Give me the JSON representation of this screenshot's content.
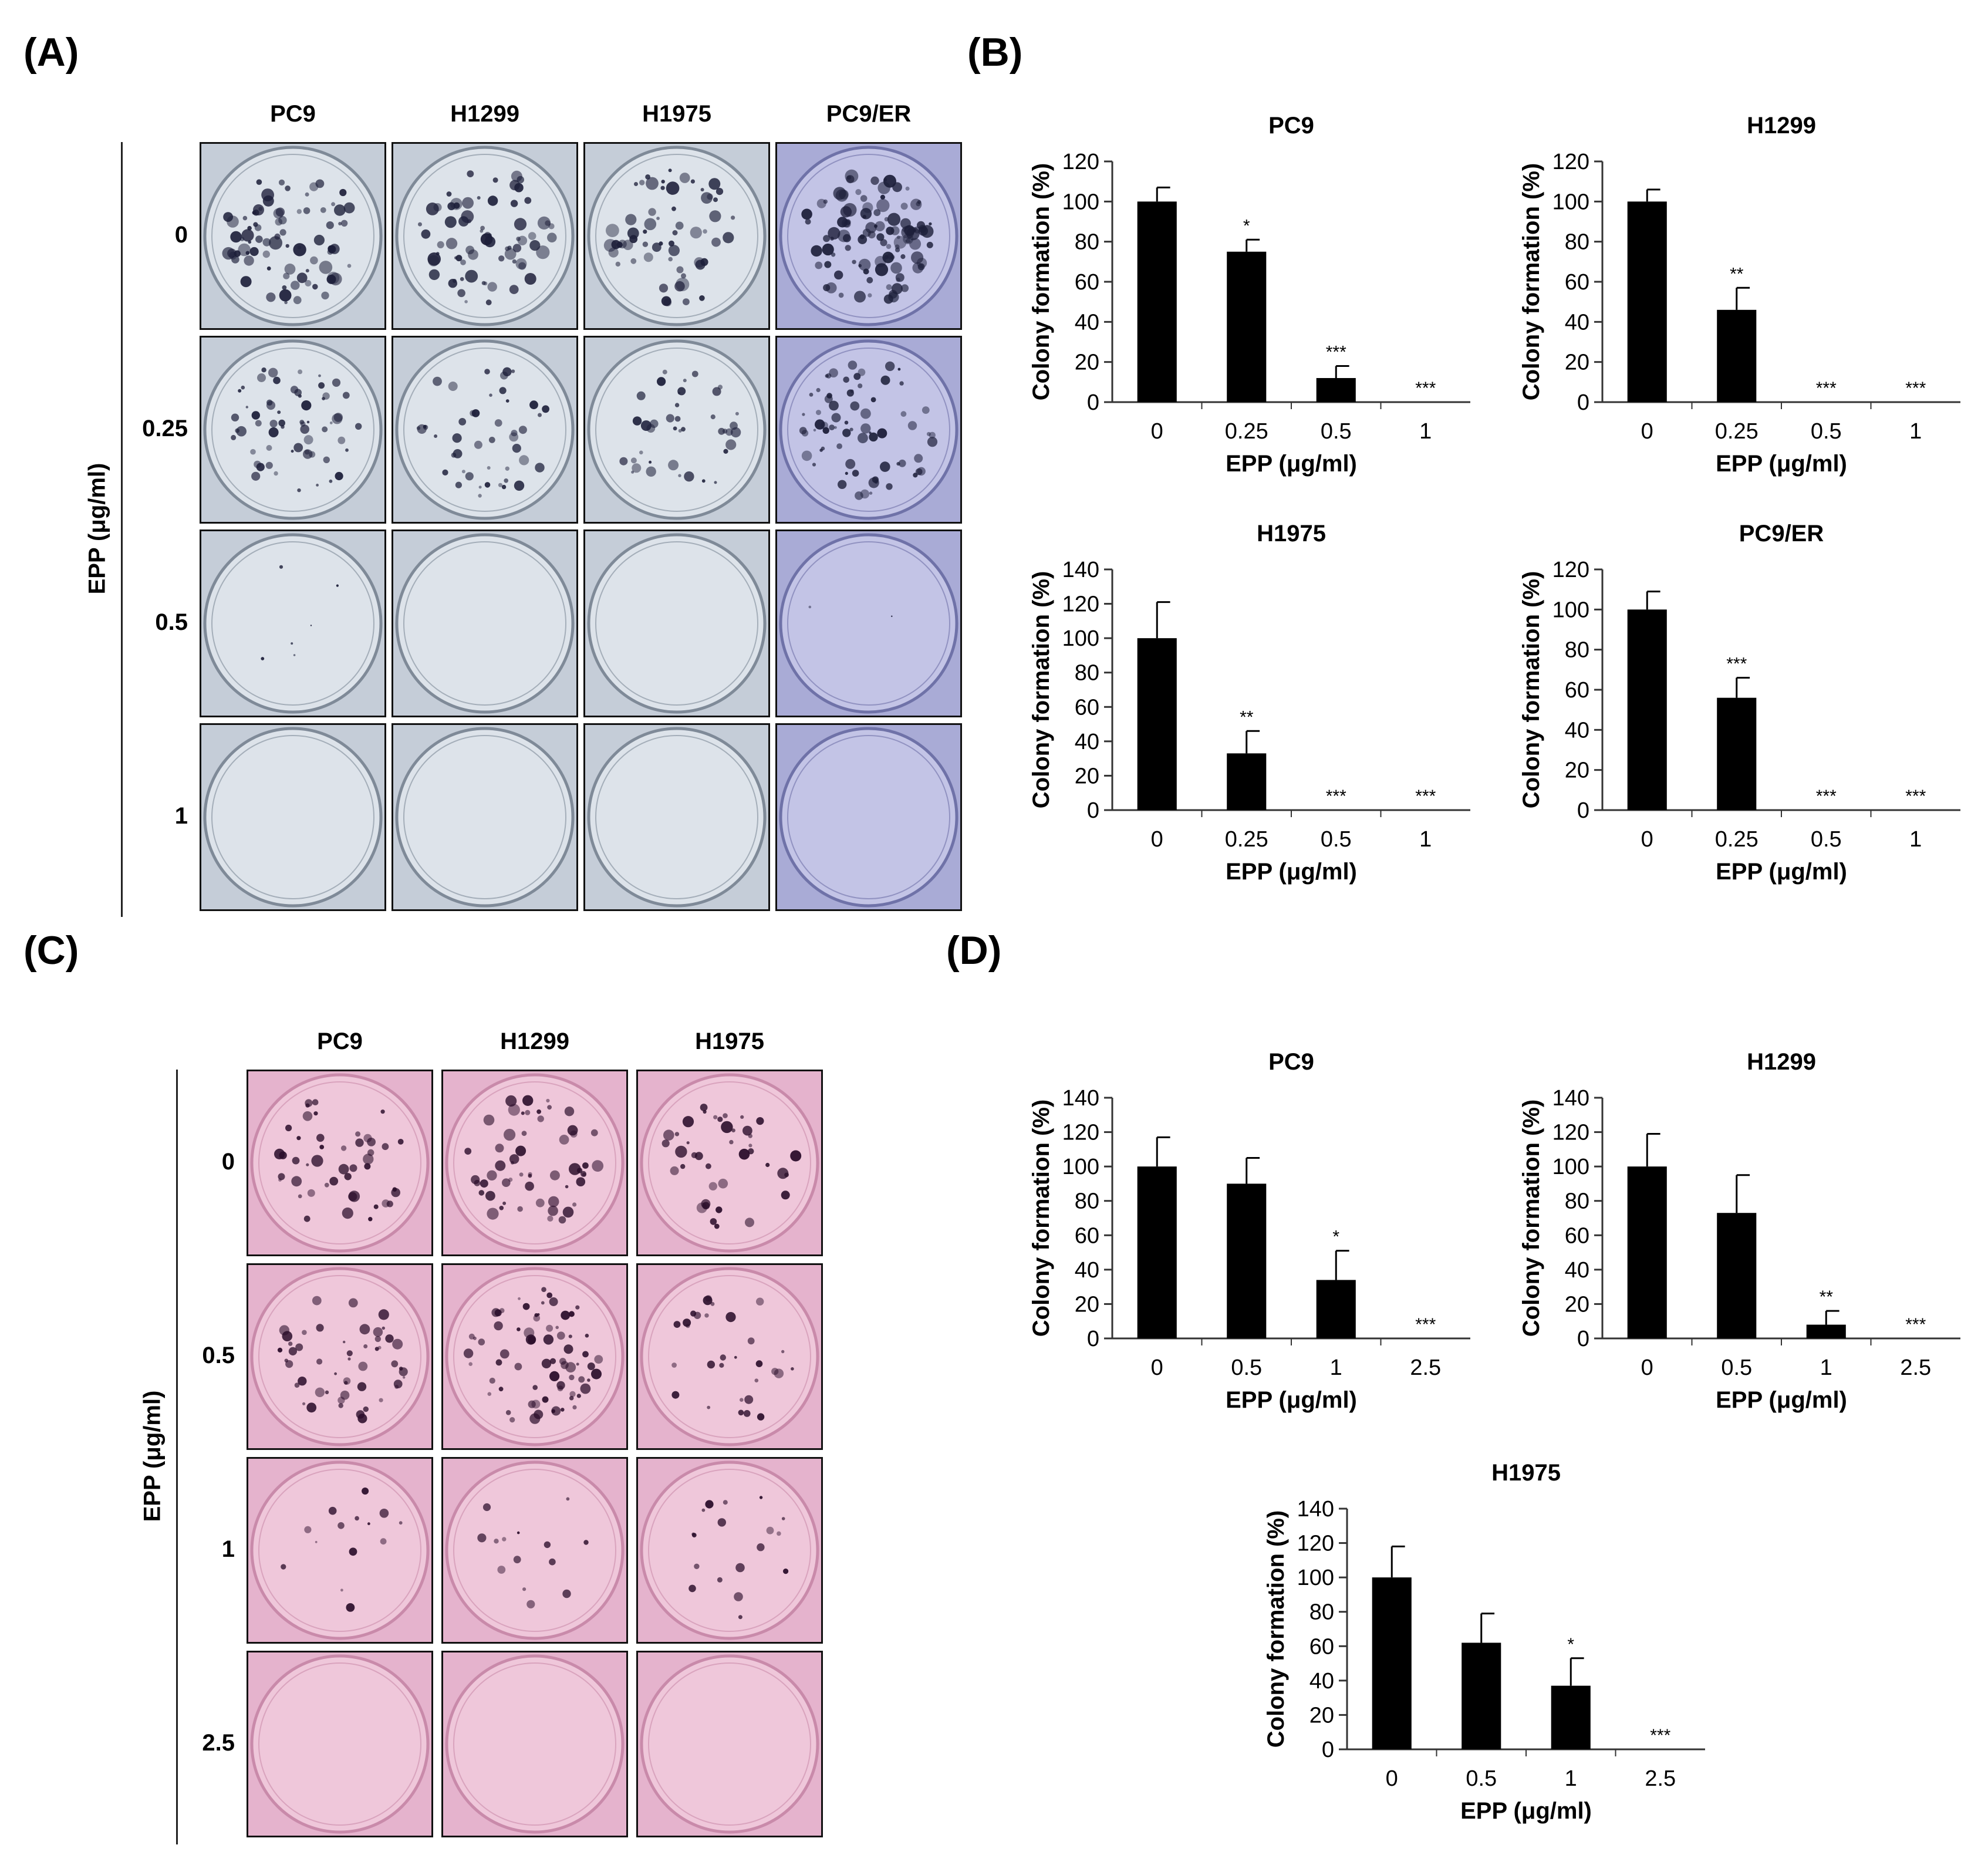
{
  "panels": {
    "A": {
      "letter": "(A)",
      "columns": [
        "PC9",
        "H1299",
        "H1975",
        "PC9/ER"
      ],
      "rows": [
        "0",
        "0.25",
        "0.5",
        "1"
      ],
      "axis_label": "EPP (μg/ml)"
    },
    "B": {
      "letter": "(B)"
    },
    "C": {
      "letter": "(C)",
      "columns": [
        "PC9",
        "H1299",
        "H1975"
      ],
      "rows": [
        "0",
        "0.5",
        "1",
        "2.5"
      ],
      "axis_label": "EPP (μg/ml)"
    },
    "D": {
      "letter": "(D)"
    }
  },
  "colors": {
    "bar": "#000000",
    "plateA_blue": "#c9d1dc",
    "plateA_purple": "#aeb0d9",
    "plateC_pink": "#e8a9c9",
    "colony": "#1a1a33"
  },
  "chart_data": [
    {
      "panel": "B",
      "type": "bar",
      "title": "PC9",
      "categories": [
        "0",
        "0.25",
        "0.5",
        "1"
      ],
      "values": [
        100,
        75,
        12,
        0
      ],
      "errors": [
        7,
        6,
        6,
        0
      ],
      "sig": [
        "",
        "*",
        "***",
        "***"
      ],
      "xlabel": "EPP (μg/ml)",
      "ylabel": "Colony formation (%)",
      "ylim": [
        0,
        120
      ],
      "yticks": [
        0,
        20,
        40,
        60,
        80,
        100,
        120
      ]
    },
    {
      "panel": "B",
      "type": "bar",
      "title": "H1299",
      "categories": [
        "0",
        "0.25",
        "0.5",
        "1"
      ],
      "values": [
        100,
        46,
        0,
        0
      ],
      "errors": [
        6,
        11,
        0,
        0
      ],
      "sig": [
        "",
        "**",
        "***",
        "***"
      ],
      "xlabel": "EPP (μg/ml)",
      "ylabel": "Colony formation (%)",
      "ylim": [
        0,
        120
      ],
      "yticks": [
        0,
        20,
        40,
        60,
        80,
        100,
        120
      ]
    },
    {
      "panel": "B",
      "type": "bar",
      "title": "H1975",
      "categories": [
        "0",
        "0.25",
        "0.5",
        "1"
      ],
      "values": [
        100,
        33,
        0,
        0
      ],
      "errors": [
        21,
        13,
        0,
        0
      ],
      "sig": [
        "",
        "**",
        "***",
        "***"
      ],
      "xlabel": "EPP (μg/ml)",
      "ylabel": "Colony formation (%)",
      "ylim": [
        0,
        140
      ],
      "yticks": [
        0,
        20,
        40,
        60,
        80,
        100,
        120,
        140
      ]
    },
    {
      "panel": "B",
      "type": "bar",
      "title": "PC9/ER",
      "categories": [
        "0",
        "0.25",
        "0.5",
        "1"
      ],
      "values": [
        100,
        56,
        0,
        0
      ],
      "errors": [
        9,
        10,
        0,
        0
      ],
      "sig": [
        "",
        "***",
        "***",
        "***"
      ],
      "xlabel": "EPP (μg/ml)",
      "ylabel": "Colony formation (%)",
      "ylim": [
        0,
        120
      ],
      "yticks": [
        0,
        20,
        40,
        60,
        80,
        100,
        120
      ]
    },
    {
      "panel": "D",
      "type": "bar",
      "title": "PC9",
      "categories": [
        "0",
        "0.5",
        "1",
        "2.5"
      ],
      "values": [
        100,
        90,
        34,
        0
      ],
      "errors": [
        17,
        15,
        17,
        0
      ],
      "sig": [
        "",
        "",
        "*",
        "***"
      ],
      "xlabel": "EPP (μg/ml)",
      "ylabel": "Colony formation (%)",
      "ylim": [
        0,
        140
      ],
      "yticks": [
        0,
        20,
        40,
        60,
        80,
        100,
        120,
        140
      ]
    },
    {
      "panel": "D",
      "type": "bar",
      "title": "H1299",
      "categories": [
        "0",
        "0.5",
        "1",
        "2.5"
      ],
      "values": [
        100,
        73,
        8,
        0
      ],
      "errors": [
        19,
        22,
        8,
        0
      ],
      "sig": [
        "",
        "",
        "**",
        "***"
      ],
      "xlabel": "EPP (μg/ml)",
      "ylabel": "Colony formation (%)",
      "ylim": [
        0,
        140
      ],
      "yticks": [
        0,
        20,
        40,
        60,
        80,
        100,
        120,
        140
      ]
    },
    {
      "panel": "D",
      "type": "bar",
      "title": "H1975",
      "categories": [
        "0",
        "0.5",
        "1",
        "2.5"
      ],
      "values": [
        100,
        62,
        37,
        0
      ],
      "errors": [
        18,
        17,
        16,
        0
      ],
      "sig": [
        "",
        "",
        "*",
        "***"
      ],
      "xlabel": "EPP (μg/ml)",
      "ylabel": "Colony formation (%)",
      "ylim": [
        0,
        140
      ],
      "yticks": [
        0,
        20,
        40,
        60,
        80,
        100,
        120,
        140
      ]
    }
  ]
}
